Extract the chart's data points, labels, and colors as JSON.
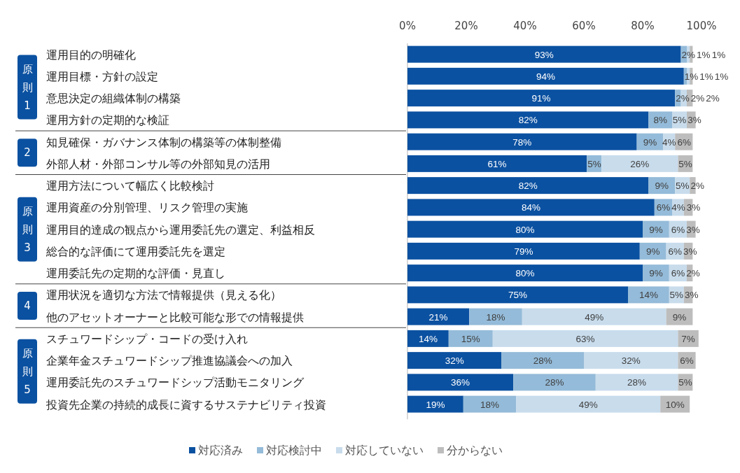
{
  "chart_data": {
    "type": "bar",
    "orientation": "horizontal",
    "stacked": true,
    "grid": false,
    "legend": "bottom",
    "categories": [
      "運用目的の明確化",
      "運用目標・方針の設定",
      "意思決定の組織体制の構築",
      "運用方針の定期的な検証",
      "知見確保・ガバナンス体制の構築等の体制整備",
      "外部人材・外部コンサル等の外部知見の活用",
      "運用方法について幅広く比較検討",
      "運用資産の分別管理、リスク管理の実施",
      "運用目的達成の観点から運用委託先の選定、利益相反",
      "総合的な評価にて運用委託先を選定",
      "運用委託先の定期的な評価・見直し",
      "運用状況を適切な方法で情報提供（見える化）",
      "他のアセットオーナーと比較可能な形での情報提供",
      "スチュワードシップ・コードの受け入れ",
      "企業年金スチュワードシップ推進協議会への加入",
      "運用委託先のスチュワードシップ活動モニタリング",
      "投資先企業の持続的成長に資するサステナビリティ投資"
    ],
    "xlim": [
      0,
      100
    ],
    "xticks": [
      {
        "value": 0,
        "label": "0%"
      },
      {
        "value": 20,
        "label": "20%"
      },
      {
        "value": 40,
        "label": "40%"
      },
      {
        "value": 60,
        "label": "60%"
      },
      {
        "value": 80,
        "label": "80%"
      },
      {
        "value": 100,
        "label": "100%"
      }
    ],
    "annotations": [
      "原則1",
      "2",
      "原則3",
      "4",
      "原則5"
    ],
    "series": [
      {
        "name": "対応済み",
        "color": "#0b51a1",
        "values": [
          93,
          94,
          91,
          82,
          78,
          61,
          82,
          84,
          80,
          79,
          80,
          75,
          21,
          14,
          32,
          36,
          19
        ],
        "value_labels": [
          "93%",
          "94%",
          "91%",
          "82%",
          "78%",
          "61%",
          "82%",
          "84%",
          "80%",
          "79%",
          "80%",
          "75%",
          "21%",
          "14%",
          "32%",
          "36%",
          "19%"
        ]
      },
      {
        "name": "対応検討中",
        "color": "#94bbd9",
        "values": [
          2,
          1,
          2,
          8,
          9,
          5,
          9,
          6,
          9,
          9,
          9,
          14,
          18,
          15,
          28,
          28,
          18
        ],
        "value_labels": [
          "2%",
          "1%",
          "2%",
          "8%",
          "9%",
          "5%",
          "9%",
          "6%",
          "9%",
          "9%",
          "9%",
          "14%",
          "18%",
          "15%",
          "28%",
          "28%",
          "18%"
        ]
      },
      {
        "name": "対応していない",
        "color": "#c8dcec",
        "values": [
          1,
          1,
          2,
          5,
          4,
          26,
          5,
          4,
          6,
          6,
          6,
          5,
          49,
          63,
          32,
          28,
          49
        ],
        "value_labels": [
          "1%",
          "1%",
          "2%",
          "5%",
          "4%",
          "26%",
          "5%",
          "4%",
          "6%",
          "6%",
          "6%",
          "5%",
          "49%",
          "63%",
          "32%",
          "28%",
          "49%"
        ]
      },
      {
        "name": "分からない",
        "color": "#bdbdbd",
        "values": [
          1,
          1,
          2,
          3,
          6,
          5,
          2,
          3,
          3,
          3,
          2,
          3,
          9,
          7,
          6,
          5,
          10
        ],
        "value_labels": [
          "1%",
          "1%",
          "2%",
          "3%",
          "6%",
          "5%",
          "2%",
          "3%",
          "3%",
          "3%",
          "2%",
          "3%",
          "9%",
          "7%",
          "6%",
          "5%",
          "10%"
        ]
      }
    ]
  }
}
